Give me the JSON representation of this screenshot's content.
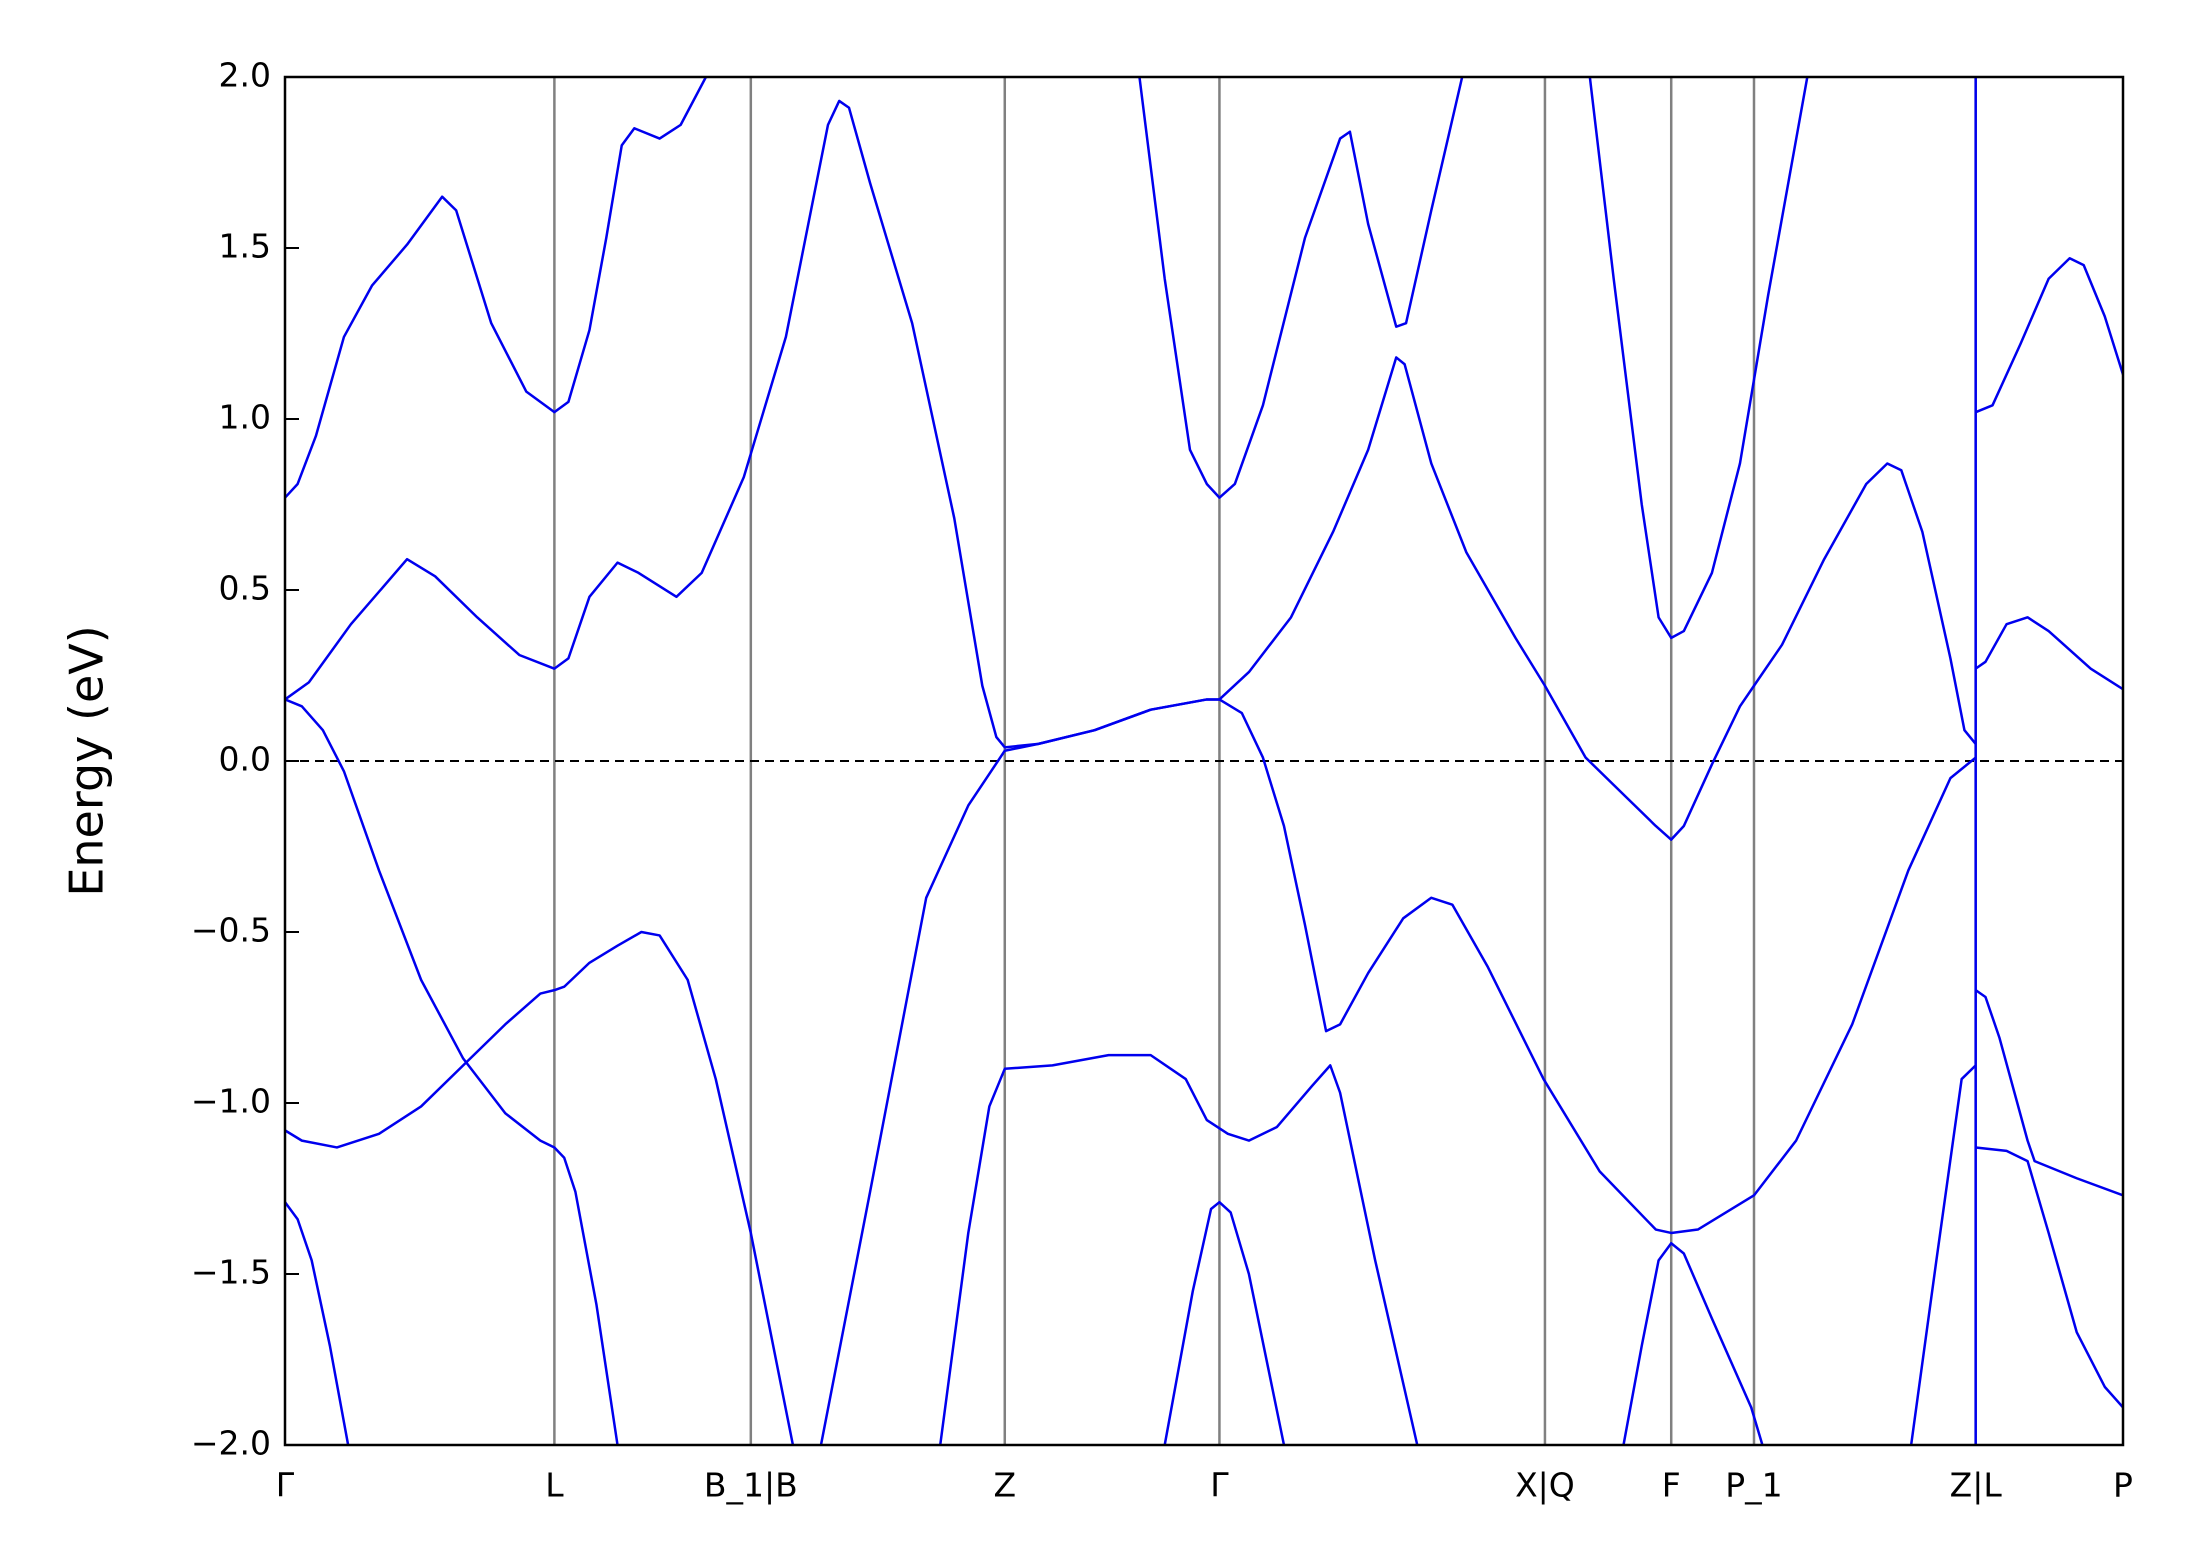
{
  "chart_data": {
    "type": "line",
    "ylabel": "Energy (eV)",
    "color": "#0000ee",
    "xlim": [
      0,
      1.31
    ],
    "ylim": [
      -2,
      2
    ],
    "xticks": [
      {
        "value": 0,
        "label": "Γ"
      },
      {
        "value": 0.192,
        "label": "L"
      },
      {
        "value": 0.332,
        "label": "B_1|B"
      },
      {
        "value": 0.513,
        "label": "Z"
      },
      {
        "value": 0.666,
        "label": "Γ"
      },
      {
        "value": 0.898,
        "label": "X|Q"
      },
      {
        "value": 0.988,
        "label": "F"
      },
      {
        "value": 1.047,
        "label": "P_1"
      },
      {
        "value": 1.205,
        "label": "Z|L"
      },
      {
        "value": 1.31,
        "label": "P"
      }
    ],
    "yticks": [
      {
        "value": -2,
        "label": "−2.0"
      },
      {
        "value": -1.5,
        "label": "−1.5"
      },
      {
        "value": -1,
        "label": "−1.0"
      },
      {
        "value": -0.5,
        "label": "−0.5"
      },
      {
        "value": 0,
        "label": "0.0"
      },
      0.5,
      {
        "value": 1,
        "label": "1.0"
      },
      1.5,
      {
        "value": 2,
        "label": "2.0"
      }
    ],
    "grid": true,
    "fermi_level": 0,
    "series": [
      {
        "x": [
          0,
          0.009,
          0.019,
          0.032,
          0.045
        ],
        "values": [
          -1.29,
          -1.34,
          -1.46,
          -1.71,
          -2.0
        ]
      },
      {
        "x": [
          0,
          0.012,
          0.027,
          0.042,
          0.067,
          0.097,
          0.127,
          0.157,
          0.182,
          0.192,
          0.199,
          0.207,
          0.222,
          0.237
        ],
        "values": [
          0.18,
          0.16,
          0.09,
          -0.03,
          -0.32,
          -0.64,
          -0.87,
          -1.03,
          -1.11,
          -1.13,
          -1.16,
          -1.26,
          -1.59,
          -2.0
        ]
      },
      {
        "x": [
          0,
          0.012,
          0.037,
          0.067,
          0.097,
          0.127,
          0.157,
          0.182,
          0.192,
          0.199,
          0.217,
          0.237,
          0.254,
          0.267,
          0.287,
          0.307,
          0.332,
          0.362
        ],
        "values": [
          -1.08,
          -1.11,
          -1.13,
          -1.09,
          -1.01,
          -0.89,
          -0.77,
          -0.68,
          -0.67,
          -0.66,
          -0.59,
          -0.54,
          -0.5,
          -0.51,
          -0.64,
          -0.93,
          -1.38,
          -2.0
        ]
      },
      {
        "x": [
          0,
          0.017,
          0.047,
          0.087,
          0.107,
          0.137,
          0.167,
          0.192,
          0.202,
          0.217,
          0.237,
          0.252,
          0.279,
          0.297,
          0.327,
          0.357,
          0.387,
          0.395,
          0.402,
          0.417,
          0.447,
          0.477,
          0.497,
          0.507,
          0.513,
          0.537,
          0.577,
          0.617,
          0.657,
          0.666,
          0.687,
          0.717,
          0.747,
          0.772,
          0.792,
          0.798,
          0.817,
          0.842,
          0.877,
          0.898,
          0.927,
          0.957,
          0.977,
          0.988,
          0.997,
          1.017,
          1.037,
          1.047,
          1.067,
          1.097,
          1.127,
          1.142,
          1.152,
          1.167,
          1.187,
          1.197,
          1.205
        ],
        "values": [
          0.18,
          0.23,
          0.4,
          0.59,
          0.54,
          0.42,
          0.31,
          0.27,
          0.3,
          0.48,
          0.58,
          0.55,
          0.48,
          0.55,
          0.83,
          1.24,
          1.86,
          1.93,
          1.91,
          1.69,
          1.28,
          0.71,
          0.22,
          0.07,
          0.04,
          0.05,
          0.09,
          0.15,
          0.18,
          0.18,
          0.26,
          0.42,
          0.67,
          0.91,
          1.18,
          1.16,
          0.87,
          0.61,
          0.36,
          0.22,
          0.01,
          -0.11,
          -0.19,
          -0.23,
          -0.19,
          -0.01,
          0.16,
          0.22,
          0.34,
          0.59,
          0.81,
          0.87,
          0.85,
          0.67,
          0.3,
          0.09,
          0.05
        ]
      },
      {
        "x": [
          1.205,
          1.212,
          1.227,
          1.242,
          1.257,
          1.287,
          1.31
        ],
        "values": [
          0.27,
          0.29,
          0.4,
          0.42,
          0.38,
          0.27,
          0.21
        ]
      },
      {
        "x": [
          0,
          0.009,
          0.022,
          0.042,
          0.062,
          0.087,
          0.112,
          0.122,
          0.147,
          0.172,
          0.192,
          0.202,
          0.217,
          0.229,
          0.24,
          0.249,
          0.267,
          0.282,
          0.3
        ],
        "values": [
          0.77,
          0.81,
          0.95,
          1.24,
          1.39,
          1.51,
          1.65,
          1.61,
          1.28,
          1.08,
          1.02,
          1.05,
          1.26,
          1.53,
          1.8,
          1.85,
          1.82,
          1.86,
          2.0
        ]
      },
      {
        "x": [
          0.382,
          0.417,
          0.457,
          0.487,
          0.513,
          0.537,
          0.577,
          0.617,
          0.657,
          0.666,
          0.682,
          0.697,
          0.712,
          0.727,
          0.742,
          0.752,
          0.772,
          0.797,
          0.817,
          0.832,
          0.857,
          0.897,
          0.937,
          0.977,
          0.988,
          1.007,
          1.047,
          1.077,
          1.117,
          1.157,
          1.187,
          1.205
        ],
        "values": [
          -2.0,
          -1.26,
          -0.4,
          -0.13,
          0.03,
          0.05,
          0.09,
          0.15,
          0.18,
          0.18,
          0.14,
          0.01,
          -0.19,
          -0.48,
          -0.79,
          -0.77,
          -0.62,
          -0.46,
          -0.4,
          -0.42,
          -0.6,
          -0.93,
          -1.2,
          -1.37,
          -1.38,
          -1.37,
          -1.27,
          -1.11,
          -0.77,
          -0.32,
          -0.05,
          0.01
        ]
      },
      {
        "x": [
          0.467,
          0.487,
          0.502,
          0.513,
          0.547,
          0.587,
          0.617,
          0.642,
          0.657,
          0.672,
          0.687,
          0.707,
          0.732,
          0.745,
          0.752,
          0.777,
          0.807
        ],
        "values": [
          -2.0,
          -1.38,
          -1.01,
          -0.9,
          -0.89,
          -0.86,
          -0.86,
          -0.93,
          -1.05,
          -1.09,
          -1.11,
          -1.07,
          -0.95,
          -0.89,
          -0.97,
          -1.46,
          -2.0
        ]
      },
      {
        "x": [
          0.627,
          0.647,
          0.66,
          0.666,
          0.674,
          0.687,
          0.712
        ],
        "values": [
          -2.0,
          -1.55,
          -1.31,
          -1.29,
          -1.32,
          -1.5,
          -2.0
        ]
      },
      {
        "x": [
          0.609,
          0.627,
          0.645,
          0.657,
          0.666,
          0.677,
          0.697,
          0.727,
          0.752,
          0.759,
          0.772,
          0.792,
          0.799,
          0.817,
          0.839
        ],
        "values": [
          2.0,
          1.41,
          0.91,
          0.81,
          0.77,
          0.81,
          1.04,
          1.53,
          1.82,
          1.84,
          1.57,
          1.27,
          1.28,
          1.61,
          2.0
        ]
      },
      {
        "x": [
          0.93,
          0.947,
          0.967,
          0.979,
          0.988,
          0.997,
          1.017,
          1.037,
          1.057,
          1.085
        ],
        "values": [
          2.0,
          1.41,
          0.75,
          0.42,
          0.36,
          0.38,
          0.55,
          0.87,
          1.36,
          2.0
        ]
      },
      {
        "x": [
          0.954,
          0.967,
          0.979,
          0.988,
          0.997,
          1.017,
          1.045,
          1.053
        ],
        "values": [
          -2.0,
          -1.71,
          -1.46,
          -1.41,
          -1.44,
          -1.63,
          -1.89,
          -2.0
        ]
      },
      {
        "x": [
          1.159,
          1.177,
          1.195,
          1.205
        ],
        "values": [
          -2.0,
          -1.46,
          -0.93,
          -0.89
        ]
      },
      {
        "x": [
          1.205,
          1.212,
          1.222,
          1.242,
          1.247,
          1.277,
          1.31
        ],
        "values": [
          -0.67,
          -0.69,
          -0.81,
          -1.11,
          -1.17,
          -1.22,
          -1.27
        ]
      },
      {
        "x": [
          1.205,
          1.227,
          1.242,
          1.257,
          1.277,
          1.297,
          1.31
        ],
        "values": [
          -1.13,
          -1.14,
          -1.17,
          -1.38,
          -1.67,
          -1.83,
          -1.89
        ]
      },
      {
        "x": [
          1.205,
          1.217,
          1.237,
          1.257,
          1.272,
          1.282,
          1.297,
          1.31
        ],
        "values": [
          1.02,
          1.04,
          1.22,
          1.41,
          1.47,
          1.45,
          1.3,
          1.13
        ]
      },
      {
        "x": [
          1.205,
          1.205
        ],
        "values": [
          -2.0,
          2.0
        ]
      }
    ]
  }
}
